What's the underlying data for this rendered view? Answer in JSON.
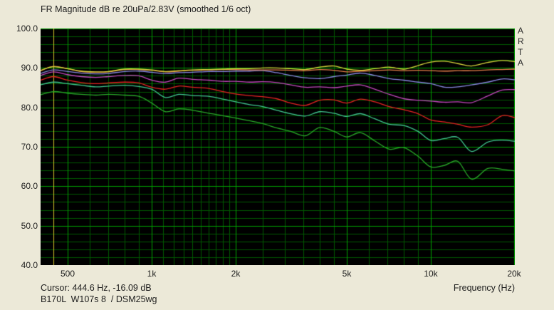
{
  "window": {
    "background": "#ece9d8"
  },
  "title": "FR Magnitude dB re 20uPa/2.83V (smoothed 1/6 oct)",
  "watermark": "ARTA",
  "status": {
    "cursor_readout": "Cursor: 444.6 Hz, -16.09 dB",
    "overlay_label": "B170L  W107s 8  / DSM25wg"
  },
  "axes": {
    "x_title": "Frequency (Hz)"
  },
  "chart_data": {
    "type": "line",
    "title": "FR Magnitude dB re 20uPa/2.83V (smoothed 1/6 oct)",
    "xlabel": "Frequency (Hz)",
    "ylabel": "dB",
    "x_scale": "log",
    "x_range_hz": [
      400,
      20000
    ],
    "y_range_db": [
      40,
      100
    ],
    "y_major_step_db": 10,
    "y_minor_step_db": 2,
    "grid": {
      "on": true,
      "plot_bg": "#000000",
      "major_color": "#00a000",
      "minor_color": "#005800"
    },
    "x_major_gridlines_hz": [
      500,
      1000,
      2000,
      5000,
      10000,
      20000
    ],
    "x_minor_gridlines_hz": [
      600,
      700,
      800,
      900,
      1100,
      1200,
      1300,
      1400,
      1500,
      1600,
      1700,
      1800,
      1900,
      2500,
      3000,
      3500,
      4000,
      4500,
      6000,
      7000,
      8000,
      9000
    ],
    "x_tick_labels": [
      {
        "hz": 500,
        "label": "500"
      },
      {
        "hz": 1000,
        "label": "1k"
      },
      {
        "hz": 2000,
        "label": "2k"
      },
      {
        "hz": 5000,
        "label": "5k"
      },
      {
        "hz": 10000,
        "label": "10k"
      },
      {
        "hz": 20000,
        "label": "20k"
      }
    ],
    "y_tick_labels": [
      {
        "db": 100,
        "label": "100.0"
      },
      {
        "db": 90,
        "label": "90.0"
      },
      {
        "db": 80,
        "label": "80.0"
      },
      {
        "db": 70,
        "label": "70.0"
      },
      {
        "db": 60,
        "label": "60.0"
      },
      {
        "db": 50,
        "label": "50.0"
      },
      {
        "db": 40,
        "label": "40.0"
      }
    ],
    "cursor": {
      "hz": 444.6,
      "db_readout": -16.09,
      "color": "#d2c228"
    },
    "legend": "none",
    "frequencies_hz": [
      400,
      445,
      500,
      560,
      630,
      700,
      800,
      900,
      1000,
      1120,
      1250,
      1400,
      1600,
      1800,
      2000,
      2240,
      2500,
      2800,
      3150,
      3550,
      4000,
      4500,
      5000,
      5600,
      6300,
      7100,
      8000,
      9000,
      10000,
      11200,
      12500,
      14000,
      16000,
      18000,
      20000
    ],
    "series": [
      {
        "name": "green",
        "color": "#28a828",
        "values_db": [
          83.2,
          84.0,
          83.6,
          83.3,
          83.1,
          83.3,
          83.1,
          82.8,
          81.1,
          78.9,
          79.6,
          79.3,
          78.5,
          77.9,
          77.3,
          76.6,
          75.9,
          74.8,
          73.9,
          72.8,
          74.9,
          73.9,
          72.5,
          73.6,
          71.5,
          69.4,
          69.8,
          67.6,
          64.9,
          65.3,
          66.3,
          61.8,
          64.5,
          64.3,
          63.9
        ]
      },
      {
        "name": "teal",
        "color": "#40c890",
        "values_db": [
          85.7,
          86.4,
          86.0,
          85.6,
          85.2,
          85.4,
          85.6,
          85.3,
          84.6,
          82.5,
          83.3,
          83.0,
          82.8,
          82.1,
          81.4,
          80.7,
          80.2,
          79.3,
          78.4,
          77.8,
          78.9,
          78.5,
          77.7,
          78.4,
          77.1,
          75.7,
          75.4,
          73.9,
          71.6,
          72.1,
          72.4,
          68.8,
          71.2,
          71.7,
          71.4
        ]
      },
      {
        "name": "red",
        "color": "#e62222",
        "values_db": [
          86.9,
          87.8,
          86.9,
          86.3,
          86.0,
          86.2,
          86.4,
          86.2,
          85.1,
          84.6,
          85.4,
          85.1,
          84.8,
          84.0,
          83.4,
          83.0,
          82.7,
          82.2,
          81.1,
          80.5,
          81.8,
          81.9,
          81.1,
          82.1,
          81.4,
          80.2,
          79.4,
          78.4,
          76.8,
          76.3,
          75.7,
          75.0,
          75.6,
          77.9,
          77.4
        ]
      },
      {
        "name": "magenta",
        "color": "#c248bc",
        "values_db": [
          88.1,
          89.0,
          88.3,
          87.8,
          87.6,
          87.8,
          88.1,
          88.0,
          86.9,
          86.4,
          87.4,
          87.1,
          86.9,
          86.6,
          86.6,
          86.4,
          86.5,
          86.3,
          85.7,
          85.1,
          85.2,
          85.0,
          85.4,
          85.7,
          84.6,
          83.3,
          82.2,
          81.8,
          81.6,
          81.3,
          81.4,
          81.2,
          82.9,
          84.4,
          84.5
        ]
      },
      {
        "name": "blue",
        "color": "#8888e0",
        "values_db": [
          88.6,
          89.5,
          89.1,
          88.7,
          88.5,
          88.6,
          89.1,
          89.2,
          88.9,
          88.6,
          88.8,
          88.9,
          89.1,
          89.1,
          89.2,
          89.2,
          89.3,
          88.8,
          88.1,
          87.5,
          87.3,
          87.8,
          88.2,
          88.7,
          88.1,
          87.3,
          86.9,
          86.4,
          86.0,
          85.1,
          85.2,
          85.7,
          86.4,
          87.2,
          87.0
        ]
      },
      {
        "name": "orange",
        "color": "#e8804a",
        "values_db": [
          89.3,
          90.4,
          89.8,
          89.1,
          88.9,
          89.0,
          89.6,
          89.6,
          89.4,
          89.0,
          89.2,
          89.4,
          89.5,
          89.6,
          89.6,
          89.5,
          89.5,
          89.5,
          89.4,
          89.3,
          89.6,
          89.4,
          89.0,
          89.2,
          89.3,
          89.5,
          89.3,
          89.4,
          89.3,
          89.2,
          89.3,
          89.3,
          89.5,
          89.6,
          89.7
        ]
      },
      {
        "name": "yellow",
        "color": "#d6d63a",
        "values_db": [
          89.4,
          90.3,
          89.8,
          89.2,
          89.0,
          89.1,
          89.7,
          89.7,
          89.5,
          89.1,
          89.3,
          89.5,
          89.6,
          89.7,
          89.8,
          89.8,
          90.0,
          90.0,
          89.8,
          89.6,
          90.2,
          90.5,
          89.7,
          89.4,
          89.8,
          90.2,
          89.7,
          90.6,
          91.5,
          91.7,
          91.1,
          90.5,
          91.4,
          91.9,
          91.6
        ]
      }
    ]
  }
}
